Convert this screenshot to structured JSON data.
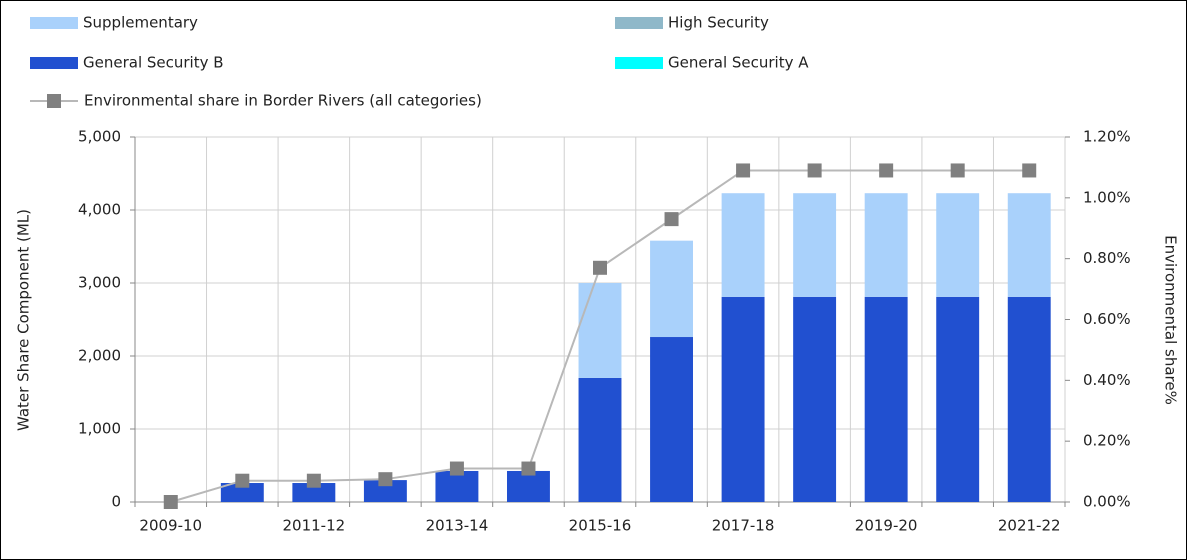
{
  "chart_data": {
    "type": "bar",
    "categories": [
      "2009-10",
      null,
      "2011-12",
      null,
      "2013-14",
      null,
      "2015-16",
      null,
      "2017-18",
      null,
      "2019-20",
      null,
      "2021-22"
    ],
    "series": [
      {
        "name": "Supplementary",
        "color": "#a9d1fb",
        "values": [
          0,
          0,
          0,
          0,
          0,
          0,
          1300,
          1320,
          1420,
          1420,
          1420,
          1420,
          1420
        ]
      },
      {
        "name": "High Security",
        "color": "#8fb8c9",
        "values": [
          0,
          0,
          0,
          0,
          0,
          0,
          0,
          0,
          0,
          0,
          0,
          0,
          0
        ]
      },
      {
        "name": "General Security B",
        "color": "#2150d0",
        "values": [
          0,
          260,
          260,
          300,
          425,
          425,
          1700,
          2260,
          2810,
          2810,
          2810,
          2810,
          2810
        ]
      },
      {
        "name": "General Security A",
        "color": "#00ffff",
        "values": [
          0,
          0,
          0,
          0,
          0,
          0,
          0,
          0,
          0,
          0,
          0,
          0,
          0
        ]
      },
      {
        "name": "Environmental share in Border Rivers (all categories)",
        "type": "line",
        "axis": "y2",
        "color": "#b8b8b8",
        "marker_color": "#808080",
        "values": [
          0,
          0.07,
          0.07,
          0.075,
          0.11,
          0.11,
          0.77,
          0.93,
          1.09,
          1.09,
          1.09,
          1.09,
          1.09
        ]
      }
    ],
    "ylabel": "Water Share Component (ML)",
    "y2label": "Environmental share%",
    "ylim": [
      0,
      5000
    ],
    "yticks": [
      0,
      {
        "value": 1000,
        "label": "1,000"
      },
      {
        "value": 2000,
        "label": "2,000"
      },
      {
        "value": 3000,
        "label": "3,000"
      },
      {
        "value": 4000,
        "label": "4,000"
      },
      {
        "value": 5000,
        "label": "5,000"
      }
    ],
    "y2lim": [
      0,
      1.2
    ],
    "y2ticks": [
      {
        "value": 0,
        "label": "0.00%"
      },
      {
        "value": 0.2,
        "label": "0.20%"
      },
      {
        "value": 0.4,
        "label": "0.40%"
      },
      {
        "value": 0.6,
        "label": "0.60%"
      },
      {
        "value": 0.8,
        "label": "0.80%"
      },
      {
        "value": 1.0,
        "label": "1.00%"
      },
      {
        "value": 1.2,
        "label": "1.20%"
      }
    ],
    "grid": true
  }
}
